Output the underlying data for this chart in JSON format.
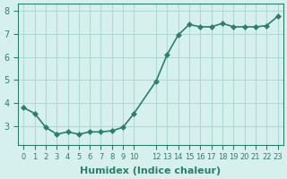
{
  "x": [
    0,
    1,
    2,
    3,
    4,
    5,
    6,
    7,
    8,
    9,
    10,
    12,
    13,
    14,
    15,
    16,
    17,
    18,
    19,
    20,
    21,
    22,
    23
  ],
  "y": [
    3.8,
    3.55,
    2.95,
    2.65,
    2.75,
    2.65,
    2.75,
    2.75,
    2.8,
    2.95,
    3.55,
    4.95,
    6.1,
    6.95,
    7.4,
    7.3,
    7.3,
    7.45,
    7.3,
    7.3,
    7.3,
    7.35,
    7.75
  ],
  "line_color": "#2e7d6e",
  "marker": "D",
  "marker_size": 3,
  "line_width": 1.2,
  "bg_color": "#d6f0ee",
  "grid_color": "#b0d8d4",
  "xlabel": "Humidex (Indice chaleur)",
  "xlabel_fontsize": 8,
  "tick_fontsize": 7,
  "yticks": [
    3,
    4,
    5,
    6,
    7,
    8
  ],
  "ylim": [
    2.2,
    8.3
  ],
  "xlim": [
    -0.5,
    23.5
  ],
  "x_tick_positions": [
    0,
    1,
    2,
    3,
    4,
    5,
    6,
    7,
    8,
    9,
    10,
    12,
    13,
    14,
    15,
    16,
    17,
    18,
    19,
    20,
    21,
    22,
    23
  ],
  "x_tick_labels": [
    "0",
    "1",
    "2",
    "3",
    "4",
    "5",
    "6",
    "7",
    "8",
    "9",
    "10",
    "12",
    "13",
    "14",
    "15",
    "16",
    "17",
    "18",
    "19",
    "20",
    "21",
    "22",
    "23"
  ]
}
